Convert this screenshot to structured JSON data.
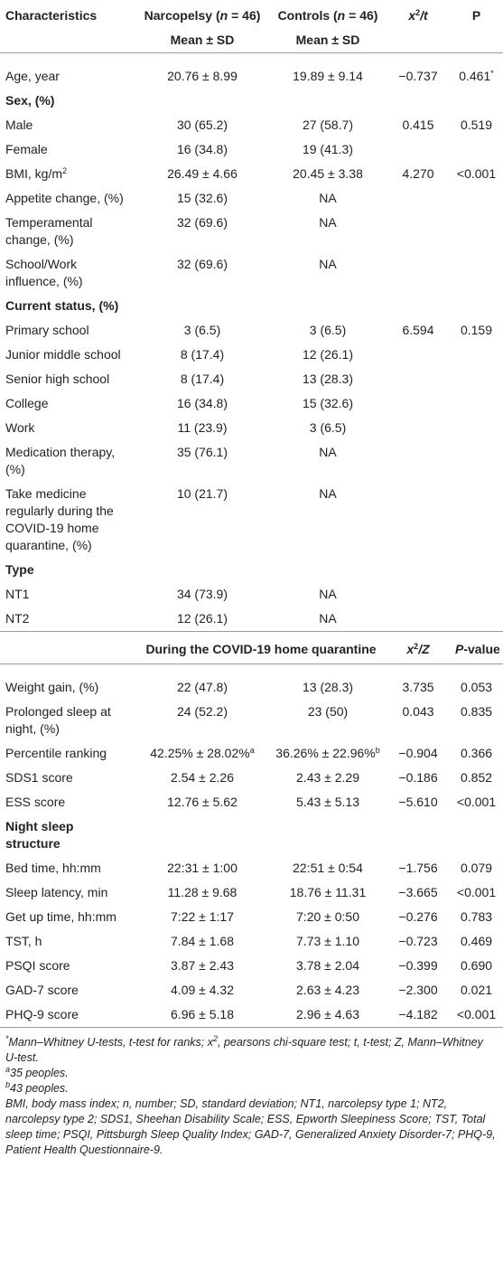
{
  "table1": {
    "header": [
      "Characteristics",
      [
        "Narcopelsy (",
        {
          "i": "n"
        },
        " = 46)"
      ],
      [
        "Controls (",
        {
          "i": "n"
        },
        " = 46)"
      ],
      [
        {
          "i": "x"
        },
        {
          "sup": "2"
        },
        {
          "i": "/t"
        }
      ],
      "P"
    ],
    "subheader": [
      "Mean ± SD",
      "Mean ± SD"
    ],
    "rows": [
      [
        "Age, year",
        "20.76 ± 8.99",
        "19.89 ± 9.14",
        "−0.737",
        [
          "0.461",
          {
            "sup": "*"
          }
        ]
      ],
      [
        "Sex, (%)"
      ],
      [
        "Male",
        "30 (65.2)",
        "27 (58.7)",
        "0.415",
        "0.519"
      ],
      [
        "Female",
        "16 (34.8)",
        "19 (41.3)"
      ],
      [
        [
          "BMI, kg/m",
          {
            "sup": "2"
          }
        ],
        "26.49 ± 4.66",
        "20.45 ± 3.38",
        "4.270",
        "<0.001"
      ],
      [
        "Appetite change, (%)",
        "15 (32.6)",
        "NA"
      ],
      [
        "Temperamental change, (%)",
        "32 (69.6)",
        "NA"
      ],
      [
        "School/Work influence, (%)",
        "32 (69.6)",
        "NA"
      ],
      [
        "Current status, (%)"
      ],
      [
        "Primary school",
        "3 (6.5)",
        "3 (6.5)",
        "6.594",
        "0.159"
      ],
      [
        "Junior middle school",
        "8 (17.4)",
        "12 (26.1)"
      ],
      [
        "Senior high school",
        "8 (17.4)",
        "13 (28.3)"
      ],
      [
        "College",
        "16 (34.8)",
        "15 (32.6)"
      ],
      [
        "Work",
        "11 (23.9)",
        "3 (6.5)"
      ],
      [
        "Medication therapy, (%)",
        "35 (76.1)",
        "NA"
      ],
      [
        "Take medicine regularly during the COVID-19 home quarantine, (%)",
        "10 (21.7)",
        "NA"
      ],
      [
        "Type"
      ],
      [
        "NT1",
        "34 (73.9)",
        "NA"
      ],
      [
        "NT2",
        "12 (26.1)",
        "NA"
      ]
    ]
  },
  "table2": {
    "header": [
      "During the COVID-19 home quarantine",
      [
        {
          "i": "x"
        },
        {
          "sup": "2"
        },
        {
          "i": "/Z"
        }
      ],
      [
        {
          "i": "P"
        },
        "-value"
      ]
    ],
    "rows": [
      [
        "Weight gain, (%)",
        "22 (47.8)",
        "13 (28.3)",
        "3.735",
        "0.053"
      ],
      [
        "Prolonged sleep at night, (%)",
        "24 (52.2)",
        "23 (50)",
        "0.043",
        "0.835"
      ],
      [
        "Percentile ranking",
        [
          "42.25% ± 28.02%",
          {
            "sup": "a"
          }
        ],
        [
          "36.26% ± 22.96%",
          {
            "sup": "b"
          }
        ],
        "−0.904",
        "0.366"
      ],
      [
        "SDS1 score",
        "2.54 ± 2.26",
        "2.43 ± 2.29",
        "−0.186",
        "0.852"
      ],
      [
        "ESS score",
        "12.76 ± 5.62",
        "5.43 ± 5.13",
        "−5.610",
        "<0.001"
      ],
      [
        "Night sleep structure"
      ],
      [
        "Bed time, hh:mm",
        "22:31 ± 1:00",
        "22:51 ± 0:54",
        "−1.756",
        "0.079"
      ],
      [
        "Sleep latency, min",
        "11.28 ± 9.68",
        "18.76 ± 11.31",
        "−3.665",
        "<0.001"
      ],
      [
        "Get up time, hh:mm",
        "7:22 ± 1:17",
        "7:20 ± 0:50",
        "−0.276",
        "0.783"
      ],
      [
        "TST, h",
        "7.84 ± 1.68",
        "7.73 ± 1.10",
        "−0.723",
        "0.469"
      ],
      [
        "PSQI score",
        "3.87 ± 2.43",
        "3.78 ± 2.04",
        "−0.399",
        "0.690"
      ],
      [
        "GAD-7 score",
        "4.09 ± 4.32",
        "2.63 ± 4.23",
        "−2.300",
        "0.021"
      ],
      [
        "PHQ-9 score",
        "6.96 ± 5.18",
        "2.96 ± 4.63",
        "−4.182",
        "<0.001"
      ]
    ]
  },
  "notes": [
    [
      {
        "sup": "*"
      },
      "Mann–Whitney U-tests, t-test for ranks; x",
      {
        "sup": "2"
      },
      ", pearsons chi-square test; t, t-test; Z, Mann–Whitney U-test."
    ],
    [
      {
        "sup": "a"
      },
      "35 peoples."
    ],
    [
      {
        "sup": "b"
      },
      "43 peoples."
    ],
    [
      "BMI, body mass index; n, number; SD, standard deviation; NT1, narcolepsy type 1; NT2, narcolepsy type 2; SDS1, Sheehan Disability Scale; ESS, Epworth Sleepiness Score; TST, Total sleep time; PSQI, Pittsburgh Sleep Quality Index; GAD-7, Generalized Anxiety Disorder-7; PHQ-9, Patient Health Questionnaire-9."
    ]
  ]
}
